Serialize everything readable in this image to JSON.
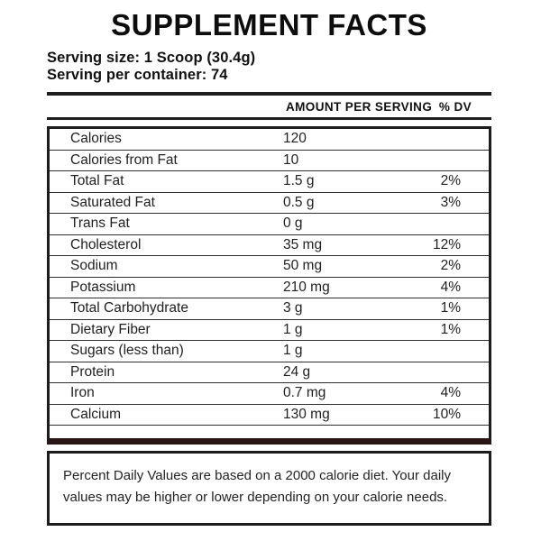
{
  "title": "SUPPLEMENT FACTS",
  "serving": {
    "size_line": "Serving size: 1 Scoop (30.4g)",
    "container_line": "Serving per container: 74"
  },
  "table": {
    "header": {
      "amount_label": "AMOUNT PER SERVING",
      "dv_label": "% DV"
    },
    "rows": [
      {
        "name": "Calories",
        "amount": "120",
        "dv": ""
      },
      {
        "name": "Calories from Fat",
        "amount": "10",
        "dv": ""
      },
      {
        "name": "Total Fat",
        "amount": "1.5 g",
        "dv": "2%"
      },
      {
        "name": "Saturated Fat",
        "amount": "0.5 g",
        "dv": "3%"
      },
      {
        "name": "Trans Fat",
        "amount": "0 g",
        "dv": ""
      },
      {
        "name": "Cholesterol",
        "amount": "35 mg",
        "dv": "12%"
      },
      {
        "name": "Sodium",
        "amount": "50 mg",
        "dv": "2%"
      },
      {
        "name": "Potassium",
        "amount": "210 mg",
        "dv": "4%"
      },
      {
        "name": "Total Carbohydrate",
        "amount": "3 g",
        "dv": "1%"
      },
      {
        "name": "Dietary Fiber",
        "amount": "1 g",
        "dv": "1%"
      },
      {
        "name": "Sugars (less than)",
        "amount": "1 g",
        "dv": ""
      },
      {
        "name": "Protein",
        "amount": "24 g",
        "dv": ""
      },
      {
        "name": "Iron",
        "amount": "0.7 mg",
        "dv": "4%"
      },
      {
        "name": "Calcium",
        "amount": "130 mg",
        "dv": "10%"
      }
    ]
  },
  "footnote": "Percent Daily Values are based on a 2000 calorie diet. Your daily values may be higher or lower depending on your calorie needs.",
  "colors": {
    "border": "#1c1c1c",
    "divider_bar": "#2b1414",
    "text": "#1a1a1a"
  }
}
